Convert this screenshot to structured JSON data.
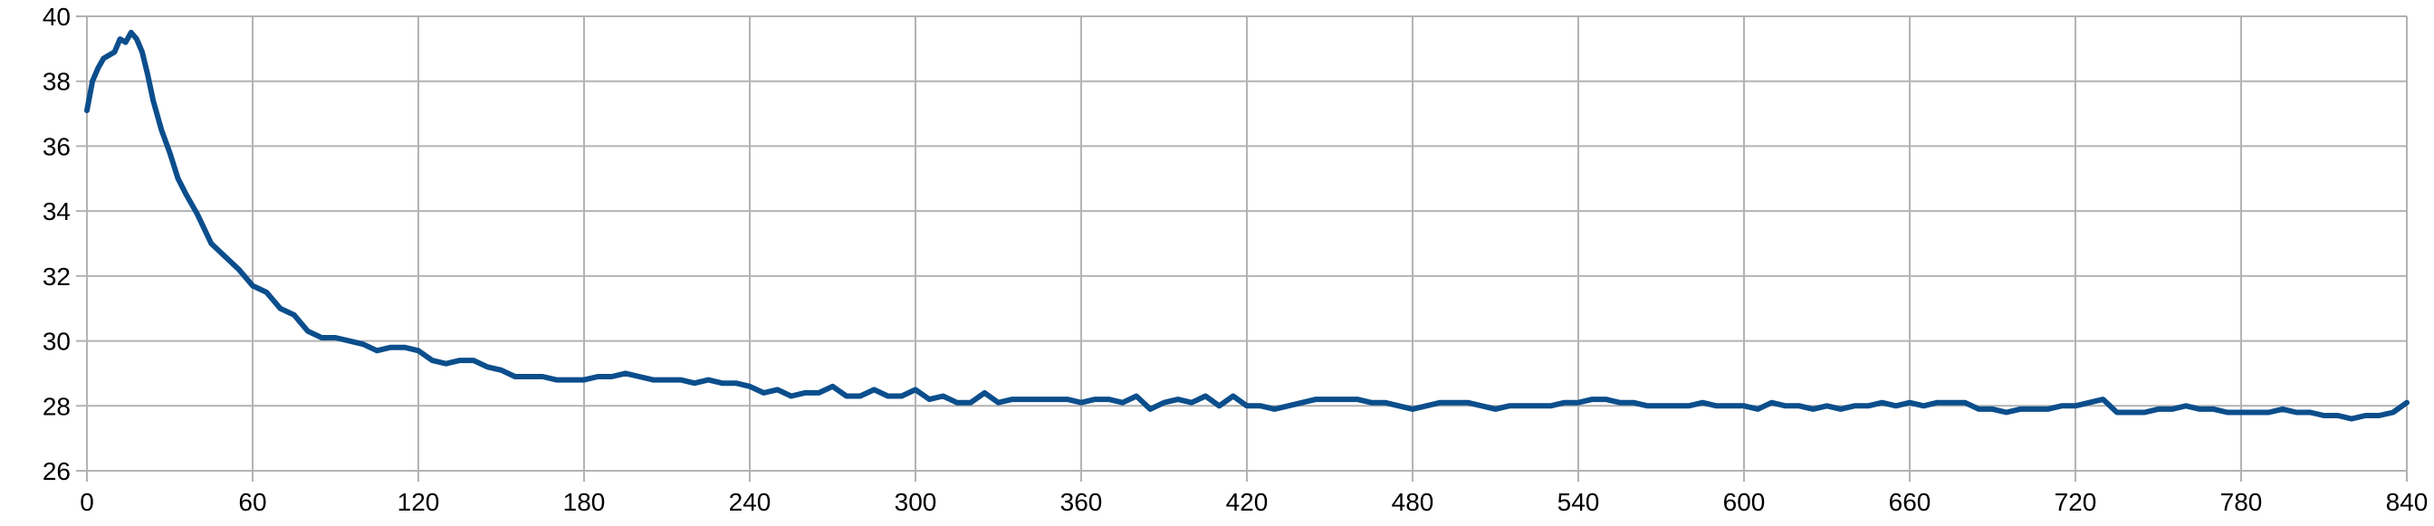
{
  "chart_data": {
    "type": "line",
    "title": "",
    "xlabel": "",
    "ylabel": "",
    "xlim": [
      0,
      840
    ],
    "ylim": [
      26,
      40
    ],
    "x_ticks": [
      0,
      60,
      120,
      180,
      240,
      300,
      360,
      420,
      480,
      540,
      600,
      660,
      720,
      780,
      840
    ],
    "y_ticks": [
      26,
      28,
      30,
      32,
      34,
      36,
      38,
      40
    ],
    "grid": true,
    "legend": "none",
    "series": [
      {
        "color": "#0b4e8c",
        "x": [
          0,
          2,
          4,
          6,
          8,
          10,
          12,
          14,
          16,
          18,
          20,
          22,
          24,
          27,
          30,
          33,
          36,
          40,
          45,
          50,
          55,
          60,
          65,
          70,
          75,
          80,
          85,
          90,
          95,
          100,
          105,
          110,
          115,
          120,
          125,
          130,
          135,
          140,
          145,
          150,
          155,
          160,
          165,
          170,
          175,
          180,
          185,
          190,
          195,
          200,
          205,
          210,
          215,
          220,
          225,
          230,
          235,
          240,
          245,
          250,
          255,
          260,
          265,
          270,
          275,
          280,
          285,
          290,
          295,
          300,
          305,
          310,
          315,
          320,
          325,
          330,
          335,
          340,
          345,
          350,
          355,
          360,
          365,
          370,
          375,
          380,
          385,
          390,
          395,
          400,
          405,
          410,
          415,
          420,
          425,
          430,
          435,
          440,
          445,
          450,
          455,
          460,
          465,
          470,
          475,
          480,
          485,
          490,
          495,
          500,
          505,
          510,
          515,
          520,
          525,
          530,
          535,
          540,
          545,
          550,
          555,
          560,
          565,
          570,
          575,
          580,
          585,
          590,
          595,
          600,
          605,
          610,
          615,
          620,
          625,
          630,
          635,
          640,
          645,
          650,
          655,
          660,
          665,
          670,
          675,
          680,
          685,
          690,
          695,
          700,
          705,
          710,
          715,
          720,
          725,
          730,
          735,
          740,
          745,
          750,
          755,
          760,
          765,
          770,
          775,
          780,
          785,
          790,
          795,
          800,
          805,
          810,
          815,
          820,
          825,
          830,
          835,
          840
        ],
        "values": [
          37.1,
          38.0,
          38.4,
          38.7,
          38.8,
          38.9,
          39.3,
          39.2,
          39.5,
          39.3,
          38.9,
          38.2,
          37.4,
          36.5,
          35.8,
          35.0,
          34.5,
          33.9,
          33.0,
          32.6,
          32.2,
          31.7,
          31.5,
          31.0,
          30.8,
          30.3,
          30.1,
          30.1,
          30.0,
          29.9,
          29.7,
          29.8,
          29.8,
          29.7,
          29.4,
          29.3,
          29.4,
          29.4,
          29.2,
          29.1,
          28.9,
          28.9,
          28.9,
          28.8,
          28.8,
          28.8,
          28.9,
          28.9,
          29.0,
          28.9,
          28.8,
          28.8,
          28.8,
          28.7,
          28.8,
          28.7,
          28.7,
          28.6,
          28.4,
          28.5,
          28.3,
          28.4,
          28.4,
          28.6,
          28.3,
          28.3,
          28.5,
          28.3,
          28.3,
          28.5,
          28.2,
          28.3,
          28.1,
          28.1,
          28.4,
          28.1,
          28.2,
          28.2,
          28.2,
          28.2,
          28.2,
          28.1,
          28.2,
          28.2,
          28.1,
          28.3,
          27.9,
          28.1,
          28.2,
          28.1,
          28.3,
          28.0,
          28.3,
          28.0,
          28.0,
          27.9,
          28.0,
          28.1,
          28.2,
          28.2,
          28.2,
          28.2,
          28.1,
          28.1,
          28.0,
          27.9,
          28.0,
          28.1,
          28.1,
          28.1,
          28.0,
          27.9,
          28.0,
          28.0,
          28.0,
          28.0,
          28.1,
          28.1,
          28.2,
          28.2,
          28.1,
          28.1,
          28.0,
          28.0,
          28.0,
          28.0,
          28.1,
          28.0,
          28.0,
          28.0,
          27.9,
          28.1,
          28.0,
          28.0,
          27.9,
          28.0,
          27.9,
          28.0,
          28.0,
          28.1,
          28.0,
          28.1,
          28.0,
          28.1,
          28.1,
          28.1,
          27.9,
          27.9,
          27.8,
          27.9,
          27.9,
          27.9,
          28.0,
          28.0,
          28.1,
          28.2,
          27.8,
          27.8,
          27.8,
          27.9,
          27.9,
          28.0,
          27.9,
          27.9,
          27.8,
          27.8,
          27.8,
          27.8,
          27.9,
          27.8,
          27.8,
          27.7,
          27.7,
          27.6,
          27.7,
          27.7,
          27.8,
          28.1
        ]
      }
    ]
  }
}
